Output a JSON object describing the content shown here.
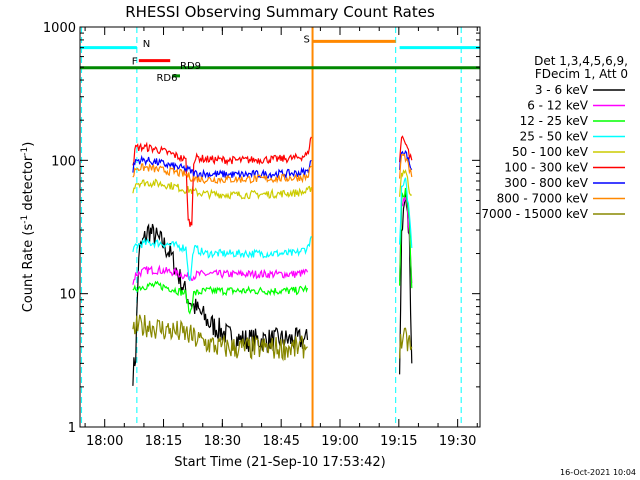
{
  "chart_data": {
    "type": "line",
    "title": "RHESSI Observing Summary Count Rates",
    "xlabel": "Start Time (21-Sep-10 17:53:42)",
    "ylabel_main": "Count Rate (s",
    "ylabel_sup1": "-1",
    "ylabel_mid": " detector",
    "ylabel_sup2": "-1",
    "ylabel_end": ")",
    "y_scale": "log",
    "ylim": [
      1,
      1000
    ],
    "x_unit": "minutes after 17:53:42",
    "xlim": [
      0,
      102
    ],
    "x_ticks": [
      {
        "t": 6.3,
        "label": "18:00"
      },
      {
        "t": 21.3,
        "label": "18:15"
      },
      {
        "t": 36.3,
        "label": "18:30"
      },
      {
        "t": 51.3,
        "label": "18:45"
      },
      {
        "t": 66.3,
        "label": "19:00"
      },
      {
        "t": 81.3,
        "label": "19:15"
      },
      {
        "t": 96.3,
        "label": "19:30"
      }
    ],
    "y_ticks": [
      {
        "v": 1,
        "label": "1"
      },
      {
        "v": 10,
        "label": "10"
      },
      {
        "v": 100,
        "label": "100"
      },
      {
        "v": 1000,
        "label": "1000"
      }
    ],
    "legend_header": [
      "Det 1,3,4,5,6,9,",
      "FDecim 1, Att 0"
    ],
    "legend_position": "right",
    "series": [
      {
        "name": "3 - 6 keV",
        "color": "#000000",
        "segments": [
          [
            [
              13.5,
              2.5
            ],
            [
              14.2,
              3.5
            ],
            [
              15,
              20
            ],
            [
              16,
              24
            ],
            [
              17.5,
              30
            ],
            [
              19,
              27
            ],
            [
              21,
              24
            ],
            [
              23,
              20
            ],
            [
              25,
              14
            ],
            [
              27,
              10
            ],
            [
              29,
              8
            ],
            [
              31,
              7
            ],
            [
              33,
              6
            ],
            [
              35,
              5.5
            ],
            [
              37,
              5
            ],
            [
              39,
              4.6
            ],
            [
              41,
              4.5
            ],
            [
              45,
              4.5
            ],
            [
              50,
              4.5
            ],
            [
              55,
              4.5
            ],
            [
              58,
              4.5
            ]
          ],
          [
            [
              81.5,
              2.5
            ],
            [
              82,
              30
            ],
            [
              83,
              55
            ],
            [
              84,
              25
            ],
            [
              84.6,
              3
            ]
          ]
        ]
      },
      {
        "name": "6 - 12 keV",
        "color": "#ff00ff",
        "segments": [
          [
            [
              13.5,
              12
            ],
            [
              14.2,
              14
            ],
            [
              17,
              15
            ],
            [
              20,
              15
            ],
            [
              24,
              14.5
            ],
            [
              27,
              13.5
            ],
            [
              29,
              13.5
            ],
            [
              30,
              14
            ],
            [
              35,
              14
            ],
            [
              40,
              14
            ],
            [
              45,
              14
            ],
            [
              50,
              14
            ],
            [
              55,
              14
            ],
            [
              58,
              14.5
            ]
          ],
          [
            [
              81.5,
              12
            ],
            [
              82,
              45
            ],
            [
              83,
              55
            ],
            [
              84,
              30
            ],
            [
              84.6,
              12
            ]
          ]
        ]
      },
      {
        "name": "12 - 25 keV",
        "color": "#00ff00",
        "segments": [
          [
            [
              13.5,
              10
            ],
            [
              14.2,
              11
            ],
            [
              17,
              11.5
            ],
            [
              20,
              11.5
            ],
            [
              23,
              11
            ],
            [
              27,
              10
            ],
            [
              28,
              7
            ],
            [
              29,
              10
            ],
            [
              32,
              10.5
            ],
            [
              40,
              10.5
            ],
            [
              50,
              10.5
            ],
            [
              55,
              10.5
            ],
            [
              58,
              11
            ]
          ],
          [
            [
              81.5,
              11
            ],
            [
              82,
              50
            ],
            [
              83,
              60
            ],
            [
              84,
              35
            ],
            [
              84.6,
              11
            ]
          ]
        ]
      },
      {
        "name": "25 - 50 keV",
        "color": "#00ffff",
        "segments": [
          [
            [
              13.5,
              20
            ],
            [
              14.2,
              23
            ],
            [
              17,
              24
            ],
            [
              20,
              24
            ],
            [
              24,
              23
            ],
            [
              27,
              22
            ],
            [
              28,
              12
            ],
            [
              29,
              22
            ],
            [
              32,
              20
            ],
            [
              40,
              20
            ],
            [
              50,
              20
            ],
            [
              55,
              20
            ],
            [
              58,
              22
            ],
            [
              59,
              27
            ]
          ],
          [
            [
              81.5,
              22
            ],
            [
              82,
              60
            ],
            [
              83,
              70
            ],
            [
              84,
              40
            ],
            [
              84.6,
              22
            ]
          ]
        ]
      },
      {
        "name": "50 - 100 keV",
        "color": "#cccc00",
        "segments": [
          [
            [
              13.5,
              60
            ],
            [
              14.2,
              68
            ],
            [
              17,
              68
            ],
            [
              20,
              67
            ],
            [
              24,
              64
            ],
            [
              27,
              60
            ],
            [
              28,
              60
            ],
            [
              29,
              58
            ],
            [
              32,
              56
            ],
            [
              40,
              55
            ],
            [
              50,
              56
            ],
            [
              55,
              57
            ],
            [
              58,
              58
            ],
            [
              59,
              63
            ]
          ],
          [
            [
              81.5,
              55
            ],
            [
              82,
              80
            ],
            [
              83,
              85
            ],
            [
              84,
              60
            ],
            [
              84.6,
              55
            ]
          ]
        ]
      },
      {
        "name": "100 - 300 keV",
        "color": "#ff0000",
        "segments": [
          [
            [
              13.5,
              95
            ],
            [
              14.2,
              125
            ],
            [
              17,
              125
            ],
            [
              20,
              120
            ],
            [
              24,
              110
            ],
            [
              27,
              100
            ],
            [
              27.6,
              35
            ],
            [
              28.5,
              33
            ],
            [
              29,
              100
            ],
            [
              30,
              105
            ],
            [
              32,
              102
            ],
            [
              40,
              100
            ],
            [
              50,
              102
            ],
            [
              55,
              104
            ],
            [
              58,
              110
            ],
            [
              59,
              150
            ]
          ],
          [
            [
              81.5,
              100
            ],
            [
              82,
              150
            ],
            [
              83,
              140
            ],
            [
              84,
              110
            ],
            [
              84.6,
              100
            ]
          ]
        ]
      },
      {
        "name": "300 - 800 keV",
        "color": "#0000ff",
        "segments": [
          [
            [
              13.5,
              85
            ],
            [
              14.2,
              100
            ],
            [
              17,
              100
            ],
            [
              20,
              96
            ],
            [
              24,
              90
            ],
            [
              27,
              86
            ],
            [
              28,
              84
            ],
            [
              29,
              80
            ],
            [
              32,
              79
            ],
            [
              40,
              78
            ],
            [
              50,
              79
            ],
            [
              55,
              80
            ],
            [
              58,
              82
            ],
            [
              59,
              100
            ]
          ],
          [
            [
              81.5,
              85
            ],
            [
              82,
              120
            ],
            [
              83,
              115
            ],
            [
              84,
              95
            ],
            [
              84.6,
              85
            ]
          ]
        ]
      },
      {
        "name": "800 - 7000 keV",
        "color": "#ff8800",
        "segments": [
          [
            [
              13.5,
              75
            ],
            [
              14.2,
              88
            ],
            [
              17,
              88
            ],
            [
              20,
              85
            ],
            [
              24,
              82
            ],
            [
              27,
              78
            ],
            [
              29,
              73
            ],
            [
              32,
              72
            ],
            [
              40,
              72
            ],
            [
              50,
              73
            ],
            [
              55,
              74
            ],
            [
              58,
              75
            ],
            [
              59,
              90
            ]
          ],
          [
            [
              81.5,
              75
            ],
            [
              82,
              110
            ],
            [
              83,
              105
            ],
            [
              84,
              85
            ],
            [
              84.6,
              75
            ]
          ]
        ]
      },
      {
        "name": "7000 - 15000 keV",
        "color": "#888800",
        "segments": [
          [
            [
              13.5,
              5
            ],
            [
              14.2,
              5.6
            ],
            [
              17,
              5.8
            ],
            [
              20,
              5.5
            ],
            [
              23,
              5.3
            ],
            [
              27,
              5.0
            ],
            [
              30,
              4.5
            ],
            [
              35,
              4.0
            ],
            [
              40,
              3.9
            ],
            [
              45,
              3.9
            ],
            [
              50,
              3.9
            ],
            [
              55,
              3.9
            ],
            [
              58,
              4.0
            ]
          ],
          [
            [
              81.5,
              4
            ],
            [
              82,
              4.5
            ],
            [
              83,
              4.5
            ],
            [
              84,
              4.2
            ],
            [
              84.6,
              4
            ]
          ]
        ]
      }
    ],
    "attenuator_bars": [
      {
        "label": "N",
        "color": "#00ffff",
        "y": 700,
        "ranges": [
          [
            0,
            14.5
          ],
          [
            81.5,
            102
          ]
        ],
        "label_t": 16,
        "label_y": 760
      },
      {
        "label": "S",
        "color": "#ff8800",
        "y": 780,
        "ranges": [
          [
            59.3,
            80.5
          ]
        ],
        "label_t": 57,
        "label_y": 820
      },
      {
        "label": "F",
        "color": "#ff0000",
        "y": 560,
        "ranges": [
          [
            15,
            23
          ]
        ],
        "label_t": 13.2,
        "label_y": 560
      },
      {
        "label": "RD6",
        "color": "#008800",
        "y": 430,
        "ranges": [
          [
            23.5,
            25.5
          ]
        ],
        "label_t": 19.5,
        "label_y": 420
      },
      {
        "label": "RD9",
        "color": "#008800",
        "y": 495,
        "ranges": [
          [
            0,
            102
          ]
        ],
        "label_t": 25.5,
        "label_y": 520
      }
    ],
    "vlines": [
      {
        "t": 0.4,
        "color": "#00ffff",
        "dash": true
      },
      {
        "t": 14.5,
        "color": "#00ffff",
        "dash": true
      },
      {
        "t": 59.3,
        "color": "#ff8800",
        "dash": false
      },
      {
        "t": 80.5,
        "color": "#00ffff",
        "dash": true
      },
      {
        "t": 97.2,
        "color": "#00ffff",
        "dash": true
      }
    ],
    "grid": false
  },
  "stamp": "16-Oct-2021 10:04"
}
